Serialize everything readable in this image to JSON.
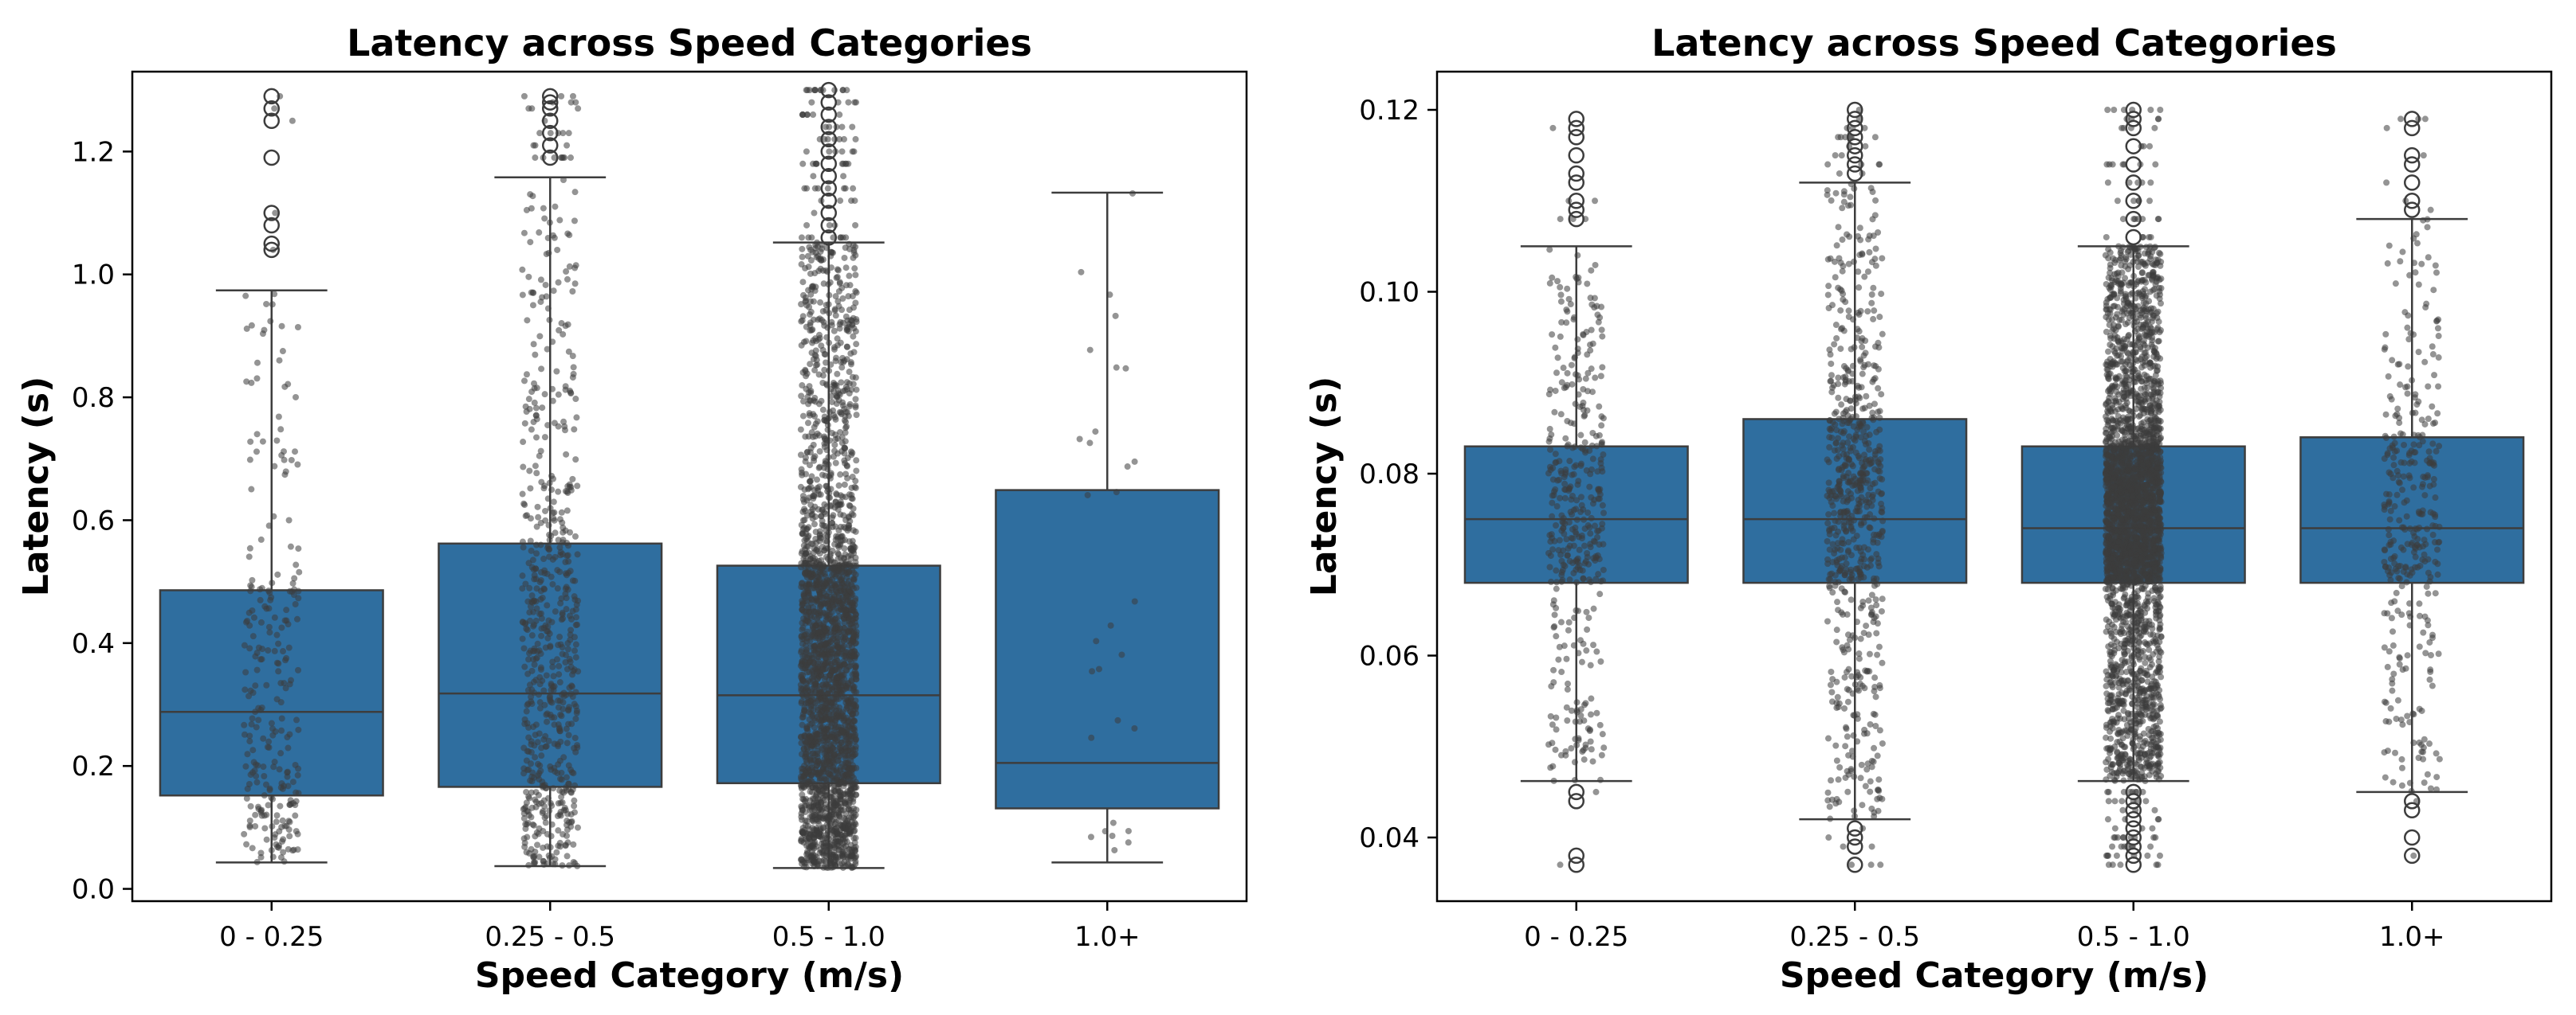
{
  "chart_data": [
    {
      "type": "box",
      "title": "Latency across Speed Categories",
      "xlabel": "Speed Category (m/s)",
      "ylabel": "Latency (s)",
      "ylim": [
        -0.02,
        1.33
      ],
      "yticks": [
        0.0,
        0.2,
        0.4,
        0.6,
        0.8,
        1.0,
        1.2
      ],
      "ytick_labels": [
        "0.0",
        "0.2",
        "0.4",
        "0.6",
        "0.8",
        "1.0",
        "1.2"
      ],
      "categories": [
        "0 - 0.25",
        "0.25 - 0.5",
        "0.5 - 1.0",
        "1.0+"
      ],
      "boxes": [
        {
          "whislo": 0.043,
          "q1": 0.152,
          "med": 0.288,
          "q3": 0.486,
          "whishi": 0.974,
          "n": 260,
          "fliers": [
            1.04,
            1.05,
            1.08,
            1.1,
            1.19,
            1.25,
            1.27,
            1.29
          ]
        },
        {
          "whislo": 0.037,
          "q1": 0.166,
          "med": 0.318,
          "q3": 0.562,
          "whishi": 1.158,
          "n": 650,
          "fliers": [
            1.19,
            1.21,
            1.23,
            1.25,
            1.27,
            1.28,
            1.29
          ]
        },
        {
          "whislo": 0.034,
          "q1": 0.172,
          "med": 0.315,
          "q3": 0.526,
          "whishi": 1.052,
          "n": 2600,
          "fliers": [
            1.06,
            1.08,
            1.1,
            1.12,
            1.14,
            1.16,
            1.18,
            1.2,
            1.22,
            1.24,
            1.26,
            1.28,
            1.3
          ]
        },
        {
          "whislo": 0.043,
          "q1": 0.131,
          "med": 0.205,
          "q3": 0.649,
          "whishi": 1.133,
          "n": 30,
          "fliers": []
        }
      ],
      "box_color": "#2f6e9f",
      "point_color": "#3c3c3c"
    },
    {
      "type": "box",
      "title": "Latency across Speed Categories",
      "xlabel": "Speed Category (m/s)",
      "ylabel": "Latency (s)",
      "ylim": [
        0.033,
        0.1242
      ],
      "yticks": [
        0.04,
        0.06,
        0.08,
        0.1,
        0.12
      ],
      "ytick_labels": [
        "0.04",
        "0.06",
        "0.08",
        "0.10",
        "0.12"
      ],
      "categories": [
        "0 - 0.25",
        "0.25 - 0.5",
        "0.5 - 1.0",
        "1.0+"
      ],
      "boxes": [
        {
          "whislo": 0.0462,
          "q1": 0.068,
          "med": 0.075,
          "q3": 0.083,
          "whishi": 0.105,
          "n": 400,
          "fliers": [
            0.037,
            0.038,
            0.044,
            0.045,
            0.108,
            0.109,
            0.11,
            0.112,
            0.113,
            0.115,
            0.117,
            0.118,
            0.119
          ]
        },
        {
          "whislo": 0.042,
          "q1": 0.068,
          "med": 0.075,
          "q3": 0.086,
          "whishi": 0.112,
          "n": 700,
          "fliers": [
            0.037,
            0.039,
            0.04,
            0.041,
            0.113,
            0.114,
            0.115,
            0.116,
            0.117,
            0.118,
            0.119,
            0.12
          ]
        },
        {
          "whislo": 0.0462,
          "q1": 0.068,
          "med": 0.074,
          "q3": 0.083,
          "whishi": 0.105,
          "n": 3200,
          "fliers": [
            0.037,
            0.038,
            0.039,
            0.04,
            0.041,
            0.042,
            0.043,
            0.044,
            0.045,
            0.106,
            0.108,
            0.11,
            0.112,
            0.114,
            0.116,
            0.118,
            0.119,
            0.12
          ]
        },
        {
          "whislo": 0.045,
          "q1": 0.068,
          "med": 0.074,
          "q3": 0.084,
          "whishi": 0.108,
          "n": 350,
          "fliers": [
            0.038,
            0.04,
            0.043,
            0.044,
            0.109,
            0.11,
            0.112,
            0.114,
            0.115,
            0.118,
            0.119
          ]
        }
      ],
      "box_color": "#2f6e9f",
      "point_color": "#3c3c3c"
    }
  ]
}
